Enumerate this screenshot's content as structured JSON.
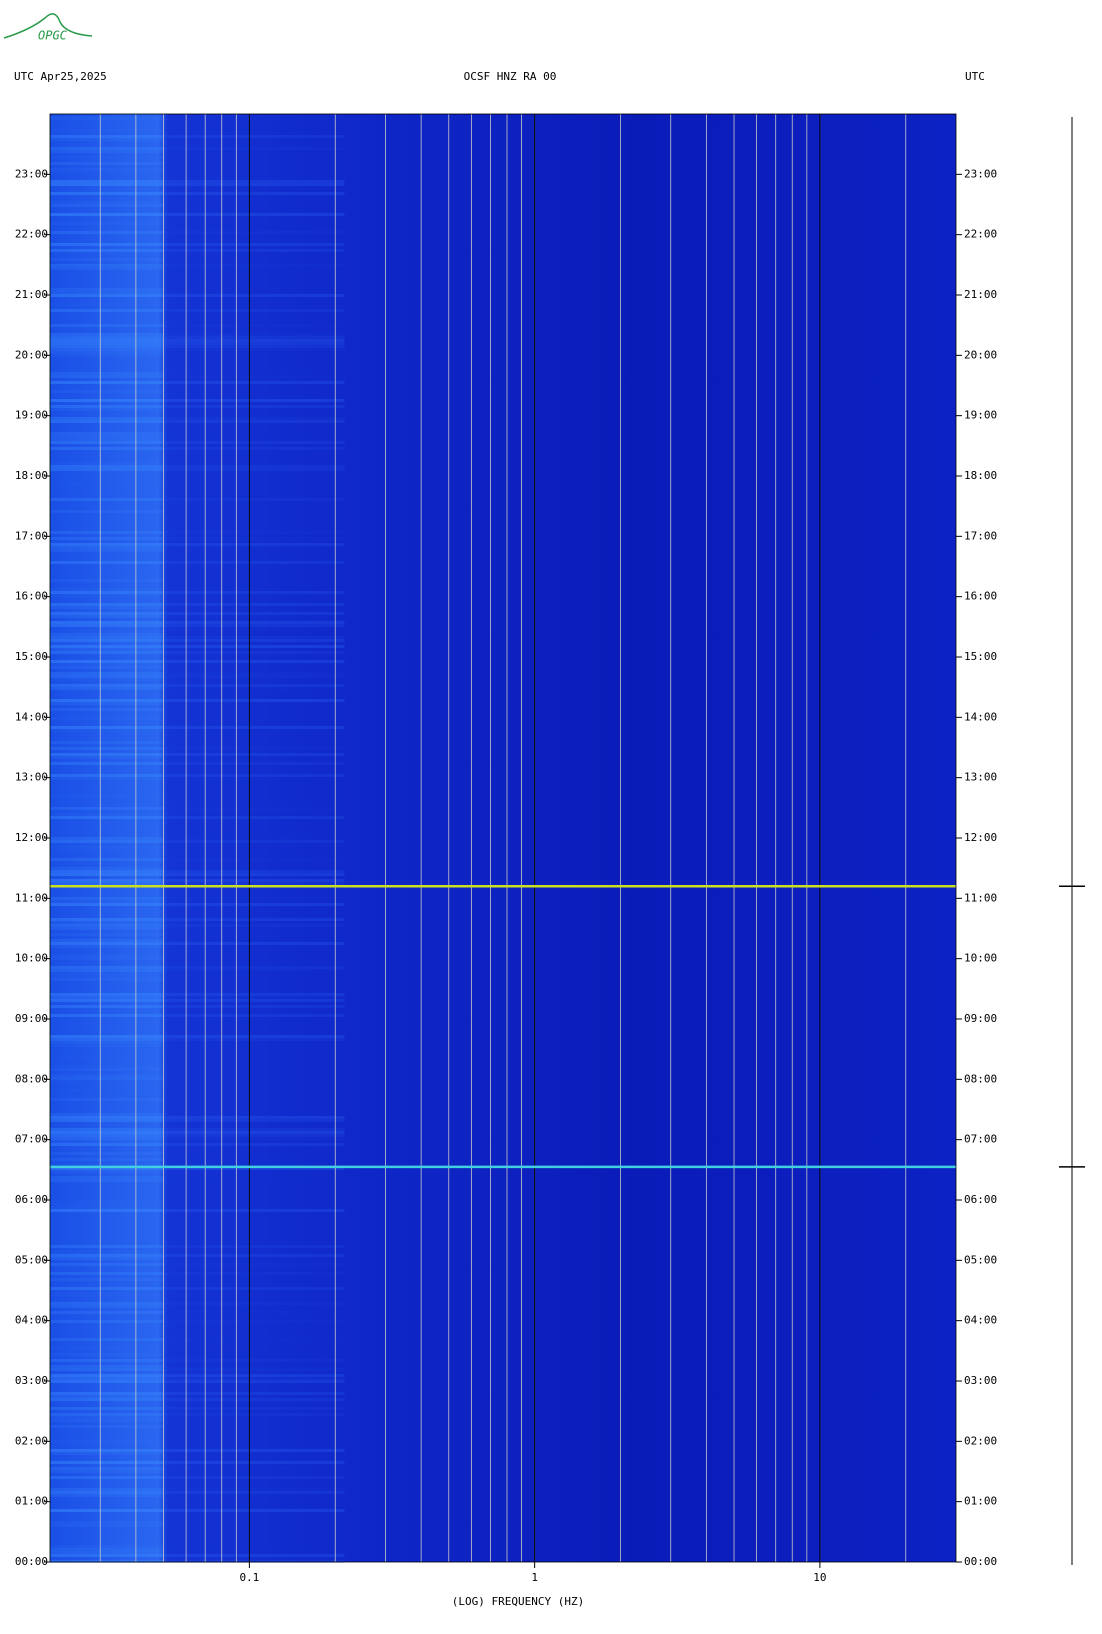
{
  "chart_data": {
    "type": "spectrogram",
    "logo": "OPGC",
    "title_left": "UTC  Apr25,2025",
    "title": "OCSF HNZ RA 00",
    "title_right": "UTC",
    "x_label": "(LOG) FREQUENCY (HZ)",
    "x_log": true,
    "xlim": [
      0.02,
      30
    ],
    "xticks": [
      0.1,
      1,
      10
    ],
    "xgrid": [
      0.03,
      0.04,
      0.05,
      0.06,
      0.07,
      0.08,
      0.09,
      0.1,
      0.2,
      0.3,
      0.4,
      0.5,
      0.6,
      0.7,
      0.8,
      0.9,
      1,
      2,
      3,
      4,
      5,
      6,
      7,
      8,
      9,
      10,
      20
    ],
    "ylim": [
      0,
      24
    ],
    "yticks": [
      {
        "value": 0,
        "label": "00:00"
      },
      {
        "value": 1,
        "label": "01:00"
      },
      {
        "value": 2,
        "label": "02:00"
      },
      {
        "value": 3,
        "label": "03:00"
      },
      {
        "value": 4,
        "label": "04:00"
      },
      {
        "value": 5,
        "label": "05:00"
      },
      {
        "value": 6,
        "label": "06:00"
      },
      {
        "value": 7,
        "label": "07:00"
      },
      {
        "value": 8,
        "label": "08:00"
      },
      {
        "value": 9,
        "label": "09:00"
      },
      {
        "value": 10,
        "label": "10:00"
      },
      {
        "value": 11,
        "label": "11:00"
      },
      {
        "value": 12,
        "label": "12:00"
      },
      {
        "value": 13,
        "label": "13:00"
      },
      {
        "value": 14,
        "label": "14:00"
      },
      {
        "value": 15,
        "label": "15:00"
      },
      {
        "value": 16,
        "label": "16:00"
      },
      {
        "value": 17,
        "label": "17:00"
      },
      {
        "value": 18,
        "label": "18:00"
      },
      {
        "value": 19,
        "label": "19:00"
      },
      {
        "value": 20,
        "label": "20:00"
      },
      {
        "value": 21,
        "label": "21:00"
      },
      {
        "value": 22,
        "label": "22:00"
      },
      {
        "value": 23,
        "label": "23:00"
      }
    ],
    "event_times": [
      11.2,
      6.55
    ]
  }
}
